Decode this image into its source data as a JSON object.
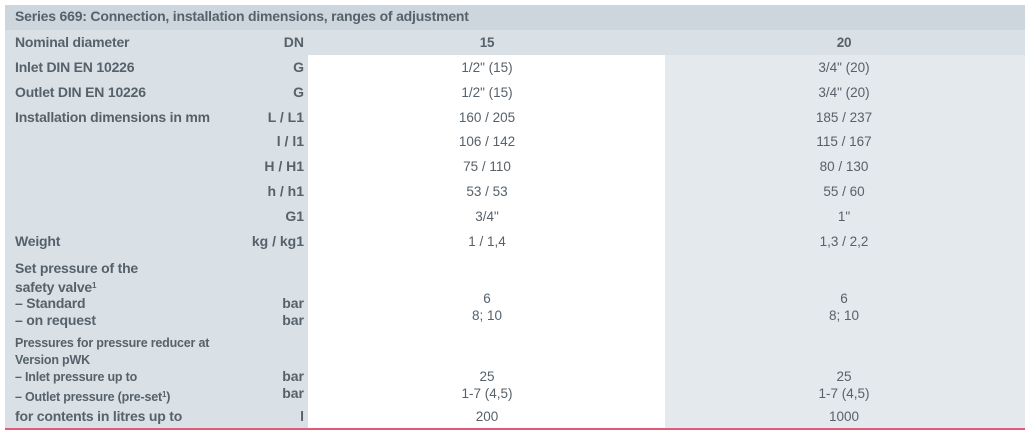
{
  "title": "Series 669: Connection, installation dimensions, ranges of adjustment",
  "columns": {
    "label": "Nominal diameter",
    "unit": "DN",
    "dn15": "15",
    "dn20": "20"
  },
  "rows": [
    {
      "label": "Inlet DIN EN 10226",
      "unit": "G",
      "dn15": "1/2\" (15)",
      "dn20": "3/4\" (20)"
    },
    {
      "label": "Outlet DIN EN 10226",
      "unit": "G",
      "dn15": "1/2\" (15)",
      "dn20": "3/4\" (20)"
    },
    {
      "label": "Installation dimensions in mm",
      "unit": "L / L1",
      "dn15": "160 / 205",
      "dn20": "185 / 237"
    },
    {
      "label": "",
      "unit": "l / l1",
      "dn15": "106 / 142",
      "dn20": "115 / 167"
    },
    {
      "label": "",
      "unit": "H / H1",
      "dn15": "75 / 110",
      "dn20": "80 / 130"
    },
    {
      "label": "",
      "unit": "h / h1",
      "dn15": "53 / 53",
      "dn20": "55 / 60"
    },
    {
      "label": "",
      "unit": "G1",
      "dn15": "3/4\"",
      "dn20": "1\""
    },
    {
      "label": "Weight",
      "unit": "kg / kg1",
      "dn15": "1 / 1,4",
      "dn20": "1,3 / 2,2"
    }
  ],
  "safety": {
    "l1": "Set pressure of the",
    "l2": "safety valve",
    "sup": "1",
    "std": "– Standard",
    "req": "– on request",
    "unit": "bar",
    "std15": "6",
    "req15": "8; 10",
    "std20": "6",
    "req20": "8; 10"
  },
  "reducer": {
    "l1": "Pressures for pressure reducer at",
    "l2": "Version pWK",
    "inlet": "– Inlet pressure up to",
    "outlet": "– Outlet pressure (pre-set",
    "sup": "1",
    "close": ")",
    "unit": "bar",
    "in15": "25",
    "out15": "1-7 (4,5)",
    "in20": "25",
    "out20": "1-7 (4,5)"
  },
  "contents": {
    "label": "for contents in litres up to",
    "unit": "l",
    "dn15": "200",
    "dn20": "1000"
  },
  "colors": {
    "header": "#cdd6dd",
    "label_col": "#d9e1e7",
    "col20": "#e4e9ed",
    "accent_line": "#e05a7a"
  }
}
